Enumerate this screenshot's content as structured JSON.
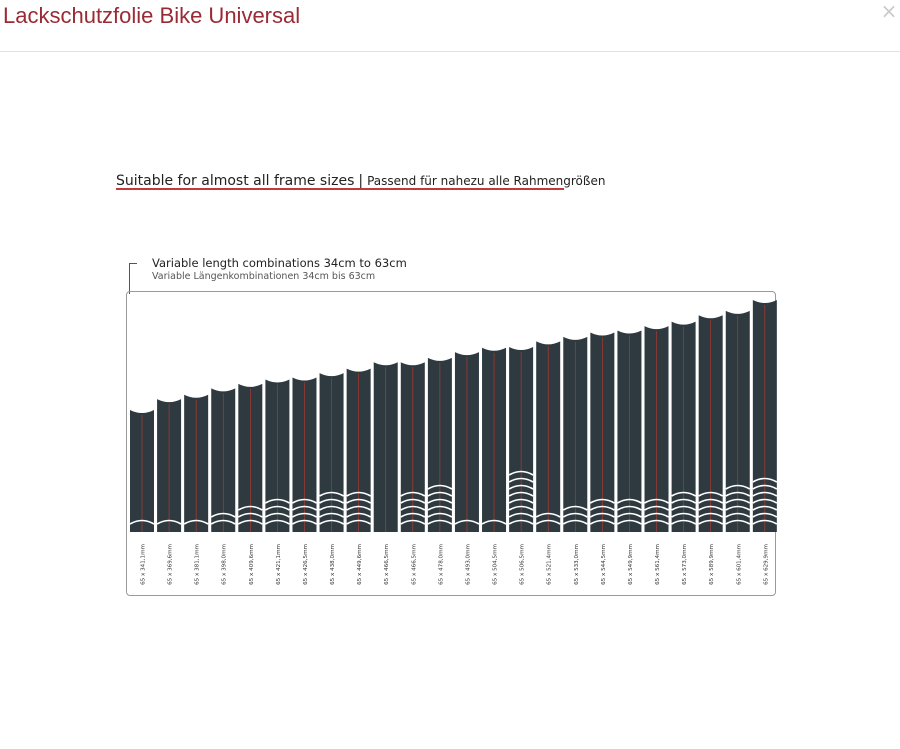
{
  "modal": {
    "title": "Lackschutzfolie Bike Universal",
    "close_icon": "×"
  },
  "figure": {
    "headline_en": "Suitable for almost all frame sizes",
    "headline_sep": "|",
    "headline_de": "Passend für nahezu alle Rahmengrößen",
    "variable_en": "Variable length combinations 34cm to 63cm",
    "variable_de": "Variable Längenkombinationen 34cm bis 63cm",
    "colors": {
      "strip": "#2f3a40",
      "accent_line": "#c0392b",
      "underline": "#c23a3a"
    },
    "strips": [
      {
        "label": "65 x 341,1mm",
        "length_mm": 341.1,
        "chevrons": 1
      },
      {
        "label": "65 x 369,6mm",
        "length_mm": 369.6,
        "chevrons": 1
      },
      {
        "label": "65 x 381,1mm",
        "length_mm": 381.1,
        "chevrons": 1
      },
      {
        "label": "65 x 398,0mm",
        "length_mm": 398.0,
        "chevrons": 2
      },
      {
        "label": "65 x 409,6mm",
        "length_mm": 409.6,
        "chevrons": 3
      },
      {
        "label": "65 x 421,1mm",
        "length_mm": 421.1,
        "chevrons": 4
      },
      {
        "label": "65 x 426,5mm",
        "length_mm": 426.5,
        "chevrons": 4
      },
      {
        "label": "65 x 438,0mm",
        "length_mm": 438.0,
        "chevrons": 5
      },
      {
        "label": "65 x 449,6mm",
        "length_mm": 449.6,
        "chevrons": 5
      },
      {
        "label": "65 x 466,5mm",
        "length_mm": 466.5,
        "chevrons": 0
      },
      {
        "label": "65 x 466,5mm",
        "length_mm": 466.5,
        "chevrons": 5
      },
      {
        "label": "65 x 478,0mm",
        "length_mm": 478.0,
        "chevrons": 6
      },
      {
        "label": "65 x 493,0mm",
        "length_mm": 493.0,
        "chevrons": 1
      },
      {
        "label": "65 x 504,5mm",
        "length_mm": 504.5,
        "chevrons": 1
      },
      {
        "label": "65 x 506,5mm",
        "length_mm": 506.5,
        "chevrons": 8
      },
      {
        "label": "65 x 521,4mm",
        "length_mm": 521.4,
        "chevrons": 2
      },
      {
        "label": "65 x 533,0mm",
        "length_mm": 533.0,
        "chevrons": 3
      },
      {
        "label": "65 x 544,5mm",
        "length_mm": 544.5,
        "chevrons": 4
      },
      {
        "label": "65 x 549,9mm",
        "length_mm": 549.9,
        "chevrons": 4
      },
      {
        "label": "65 x 561,4mm",
        "length_mm": 561.4,
        "chevrons": 4
      },
      {
        "label": "65 x 573,0mm",
        "length_mm": 573.0,
        "chevrons": 5
      },
      {
        "label": "65 x 589,9mm",
        "length_mm": 589.9,
        "chevrons": 5
      },
      {
        "label": "65 x 601,4mm",
        "length_mm": 601.4,
        "chevrons": 6
      },
      {
        "label": "65 x 629,9mm",
        "length_mm": 629.9,
        "chevrons": 7
      }
    ]
  }
}
